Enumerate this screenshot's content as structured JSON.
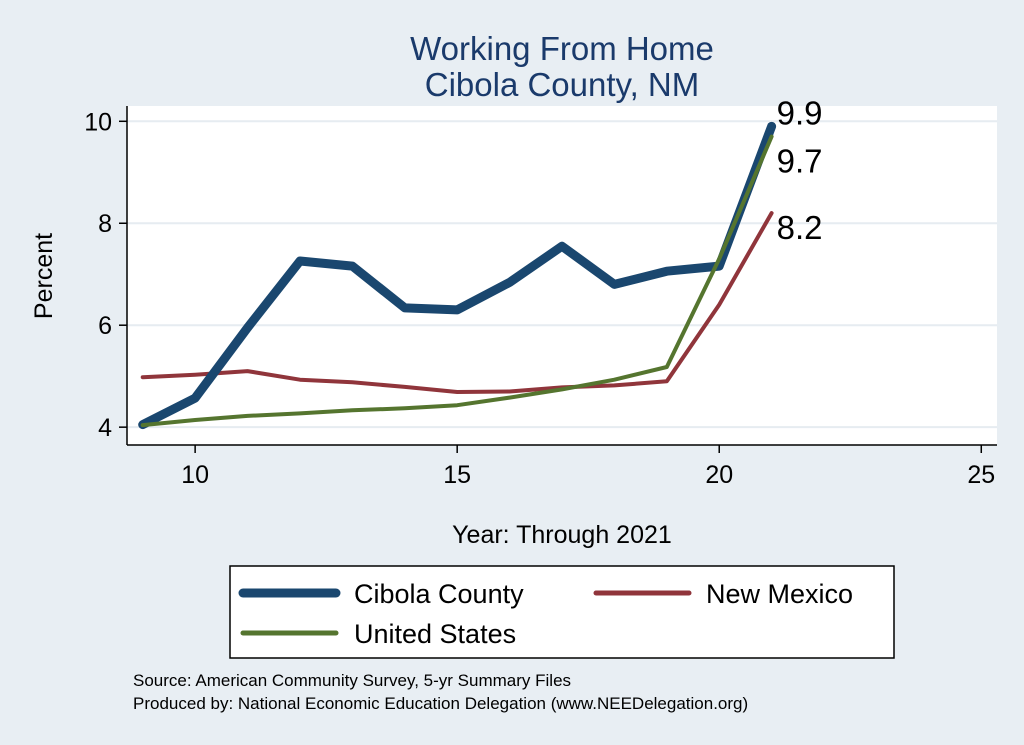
{
  "chart_data": {
    "type": "line",
    "title": [
      "Working From Home",
      "Cibola County, NM"
    ],
    "xlabel": "Year: Through 2021",
    "ylabel": "Percent",
    "xlim": [
      8.7,
      25.3
    ],
    "ylim": [
      3.65,
      10.3
    ],
    "xticks": [
      10,
      15,
      20,
      25
    ],
    "yticks": [
      4,
      6,
      8,
      10
    ],
    "grid": true,
    "legend_position": "bottom",
    "x": [
      9,
      10,
      11,
      12,
      13,
      14,
      15,
      16,
      17,
      18,
      19,
      20,
      21
    ],
    "series": [
      {
        "name": "Cibola County",
        "color": "#1a476f",
        "values": [
          4.05,
          4.57,
          5.95,
          7.26,
          7.16,
          6.34,
          6.3,
          6.84,
          7.55,
          6.8,
          7.06,
          7.16,
          9.9
        ],
        "end_label": "9.9"
      },
      {
        "name": "New Mexico",
        "color": "#90353b",
        "values": [
          4.98,
          5.03,
          5.1,
          4.93,
          4.88,
          4.79,
          4.69,
          4.7,
          4.78,
          4.82,
          4.9,
          6.4,
          8.2
        ],
        "end_label": "8.2"
      },
      {
        "name": "United States",
        "color": "#55752f",
        "values": [
          4.04,
          4.14,
          4.22,
          4.27,
          4.33,
          4.37,
          4.43,
          4.58,
          4.74,
          4.93,
          5.18,
          7.3,
          9.7
        ],
        "end_label": "9.7"
      }
    ]
  },
  "notes": {
    "source": "Source: American Community Survey, 5-yr Summary Files",
    "produced": "Produced by: National Economic Education Delegation (www.NEEDelegation.org)"
  }
}
